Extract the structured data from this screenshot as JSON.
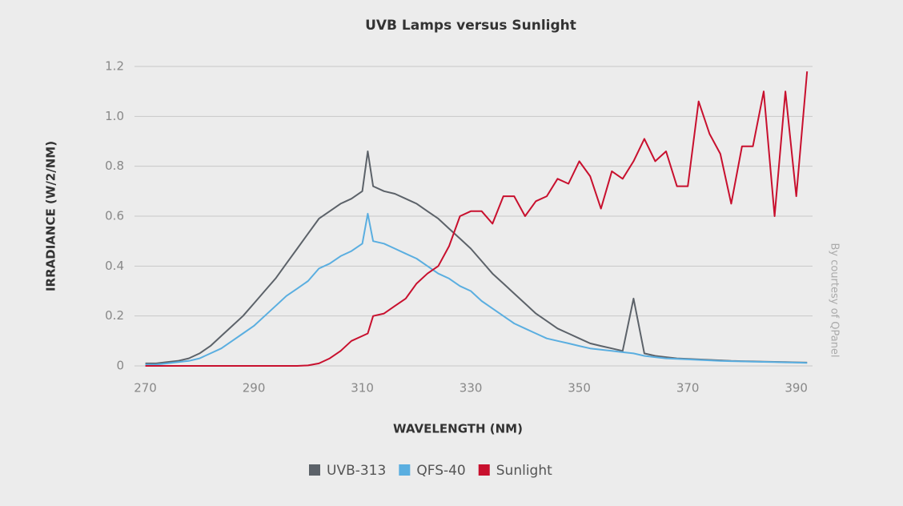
{
  "chart_data": {
    "type": "line",
    "title": "UVB Lamps versus Sunlight",
    "xlabel": "WAVELENGTH (NM)",
    "ylabel": "IRRADIANCE (W/2/NM)",
    "note": "By courtesy of QPanel",
    "x": [
      270,
      272,
      274,
      276,
      278,
      280,
      282,
      284,
      286,
      288,
      290,
      292,
      294,
      296,
      298,
      300,
      302,
      304,
      306,
      308,
      310,
      311,
      312,
      314,
      316,
      318,
      320,
      322,
      324,
      326,
      328,
      330,
      332,
      334,
      336,
      338,
      340,
      342,
      344,
      346,
      348,
      350,
      352,
      354,
      356,
      358,
      360,
      362,
      364,
      366,
      368,
      370,
      372,
      374,
      376,
      378,
      380,
      382,
      384,
      386,
      388,
      390,
      392
    ],
    "series": [
      {
        "name": "UVB-313",
        "color": "#5c6269",
        "values": [
          0.01,
          0.01,
          0.015,
          0.02,
          0.03,
          0.05,
          0.08,
          0.12,
          0.16,
          0.2,
          0.25,
          0.3,
          0.35,
          0.41,
          0.47,
          0.53,
          0.59,
          0.62,
          0.65,
          0.67,
          0.7,
          0.86,
          0.72,
          0.7,
          0.69,
          0.67,
          0.65,
          0.62,
          0.59,
          0.55,
          0.51,
          0.47,
          0.42,
          0.37,
          0.33,
          0.29,
          0.25,
          0.21,
          0.18,
          0.15,
          0.13,
          0.11,
          0.09,
          0.08,
          0.07,
          0.06,
          0.27,
          0.05,
          0.04,
          0.035,
          0.03,
          0.028,
          0.026,
          0.024,
          0.022,
          0.02,
          0.019,
          0.018,
          0.017,
          0.016,
          0.015,
          0.014,
          0.013
        ]
      },
      {
        "name": "QFS-40",
        "color": "#5aaee0",
        "values": [
          0.005,
          0.005,
          0.01,
          0.015,
          0.02,
          0.03,
          0.05,
          0.07,
          0.1,
          0.13,
          0.16,
          0.2,
          0.24,
          0.28,
          0.31,
          0.34,
          0.39,
          0.41,
          0.44,
          0.46,
          0.49,
          0.61,
          0.5,
          0.49,
          0.47,
          0.45,
          0.43,
          0.4,
          0.37,
          0.35,
          0.32,
          0.3,
          0.26,
          0.23,
          0.2,
          0.17,
          0.15,
          0.13,
          0.11,
          0.1,
          0.09,
          0.08,
          0.07,
          0.065,
          0.06,
          0.055,
          0.05,
          0.04,
          0.035,
          0.03,
          0.028,
          0.026,
          0.024,
          0.022,
          0.02,
          0.019,
          0.018,
          0.017,
          0.016,
          0.015,
          0.014,
          0.013,
          0.012
        ]
      },
      {
        "name": "Sunlight",
        "color": "#c8102e",
        "values": [
          0,
          0,
          0,
          0,
          0,
          0,
          0,
          0,
          0,
          0,
          0,
          0,
          0,
          0,
          0,
          0.002,
          0.01,
          0.03,
          0.06,
          0.1,
          0.12,
          0.13,
          0.2,
          0.21,
          0.24,
          0.27,
          0.33,
          0.37,
          0.4,
          0.48,
          0.6,
          0.62,
          0.62,
          0.57,
          0.68,
          0.68,
          0.6,
          0.66,
          0.68,
          0.75,
          0.73,
          0.82,
          0.76,
          0.63,
          0.78,
          0.75,
          0.82,
          0.91,
          0.82,
          0.86,
          0.72,
          0.72,
          1.06,
          0.93,
          0.85,
          0.65,
          0.88,
          0.88,
          1.1,
          0.6,
          1.1,
          0.68,
          1.18
        ]
      }
    ],
    "xlim": [
      268,
      393
    ],
    "xticks": [
      270,
      290,
      310,
      330,
      350,
      370,
      390
    ],
    "ylim": [
      0,
      1.2
    ],
    "yticks": [
      0,
      0.2,
      0.4,
      {
        "value": 0.6,
        "label": "0.6"
      },
      0.8,
      {
        "value": 1,
        "label": "1.0"
      },
      1.2
    ],
    "grid": true
  }
}
